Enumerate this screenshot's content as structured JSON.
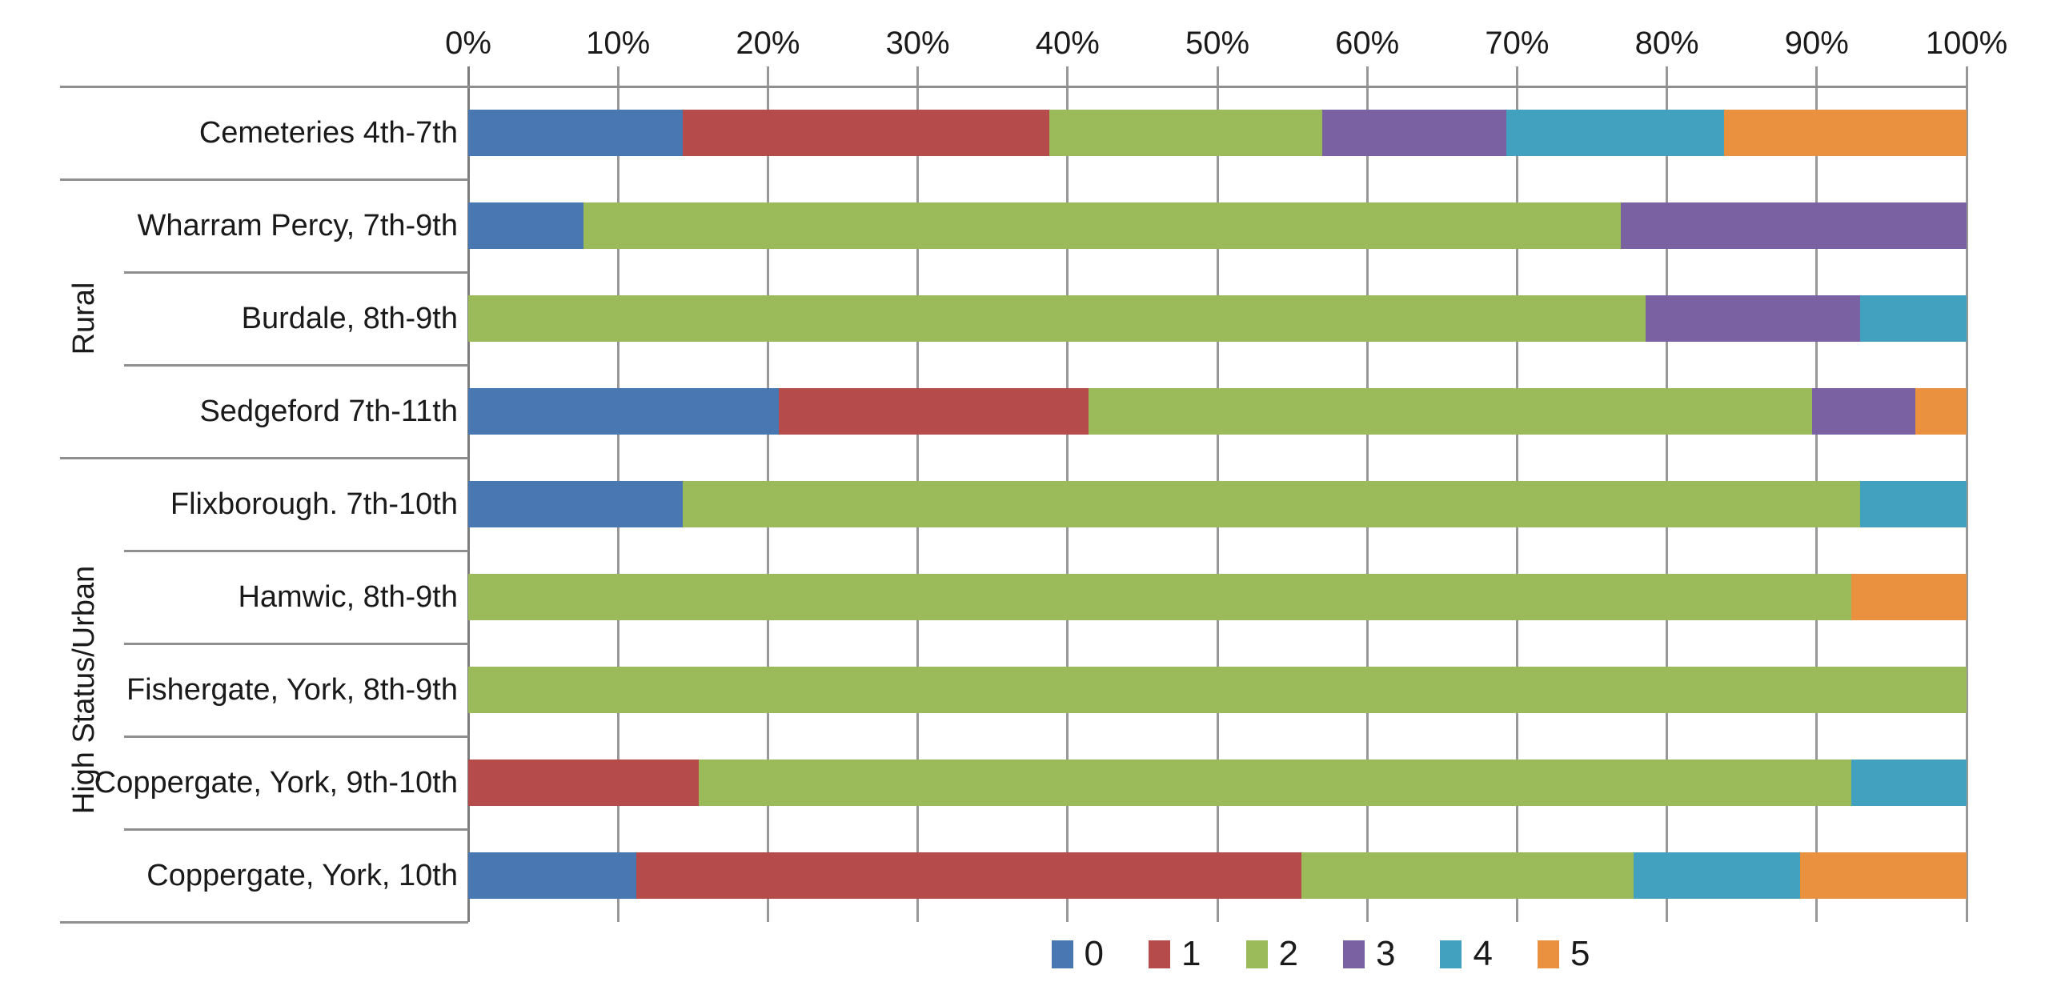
{
  "chart_data": {
    "type": "bar",
    "variant": "horizontal-stacked-100pct",
    "title": "",
    "x_axis": {
      "position": "top",
      "min": 0,
      "max": 100,
      "ticks": [
        0,
        10,
        20,
        30,
        40,
        50,
        60,
        70,
        80,
        90,
        100
      ],
      "tick_labels": [
        "0%",
        "10%",
        "20%",
        "30%",
        "40%",
        "50%",
        "60%",
        "70%",
        "80%",
        "90%",
        "100%"
      ]
    },
    "categories": [
      "Cemeteries 4th-7th",
      "Wharram Percy, 7th-9th",
      "Burdale, 8th-9th",
      "Sedgeford 7th-11th",
      "Flixborough. 7th-10th",
      "Hamwic, 8th-9th",
      "Fishergate, York, 8th-9th",
      "Coppergate, York, 9th-10th",
      "Coppergate, York, 10th"
    ],
    "groups": [
      {
        "label": "",
        "count": 1
      },
      {
        "label": "Rural",
        "count": 3
      },
      {
        "label": "High Status/Urban",
        "count": 5
      }
    ],
    "series": [
      {
        "name": "0",
        "color": "#4977B2",
        "values": [
          14.3,
          7.7,
          0,
          20.7,
          14.3,
          0,
          0,
          0,
          11.2
        ]
      },
      {
        "name": "1",
        "color": "#B54B4B",
        "values": [
          24.5,
          0,
          0,
          20.7,
          0,
          0,
          0,
          15.4,
          44.4
        ]
      },
      {
        "name": "2",
        "color": "#9BBA59",
        "values": [
          18.2,
          69.2,
          78.6,
          48.3,
          78.6,
          92.3,
          100,
          76.9,
          22.2
        ]
      },
      {
        "name": "3",
        "color": "#7A62A2",
        "values": [
          12.3,
          23.1,
          14.3,
          6.9,
          0,
          0,
          0,
          0,
          0
        ]
      },
      {
        "name": "4",
        "color": "#41A1BF",
        "values": [
          14.5,
          0,
          7.1,
          0,
          7.1,
          0,
          0,
          7.7,
          11.1
        ]
      },
      {
        "name": "5",
        "color": "#E9913E",
        "values": [
          16.2,
          0,
          0,
          3.4,
          0,
          7.7,
          0,
          0,
          11.1
        ]
      }
    ],
    "legend": {
      "position": "bottom",
      "entries": [
        "0",
        "1",
        "2",
        "3",
        "4",
        "5"
      ]
    },
    "grid": true
  },
  "colors": {
    "background": "#FFFFFF",
    "grid_line": "#989898",
    "axis_line": "#8F8F8F",
    "text": "#1A1A1A"
  }
}
